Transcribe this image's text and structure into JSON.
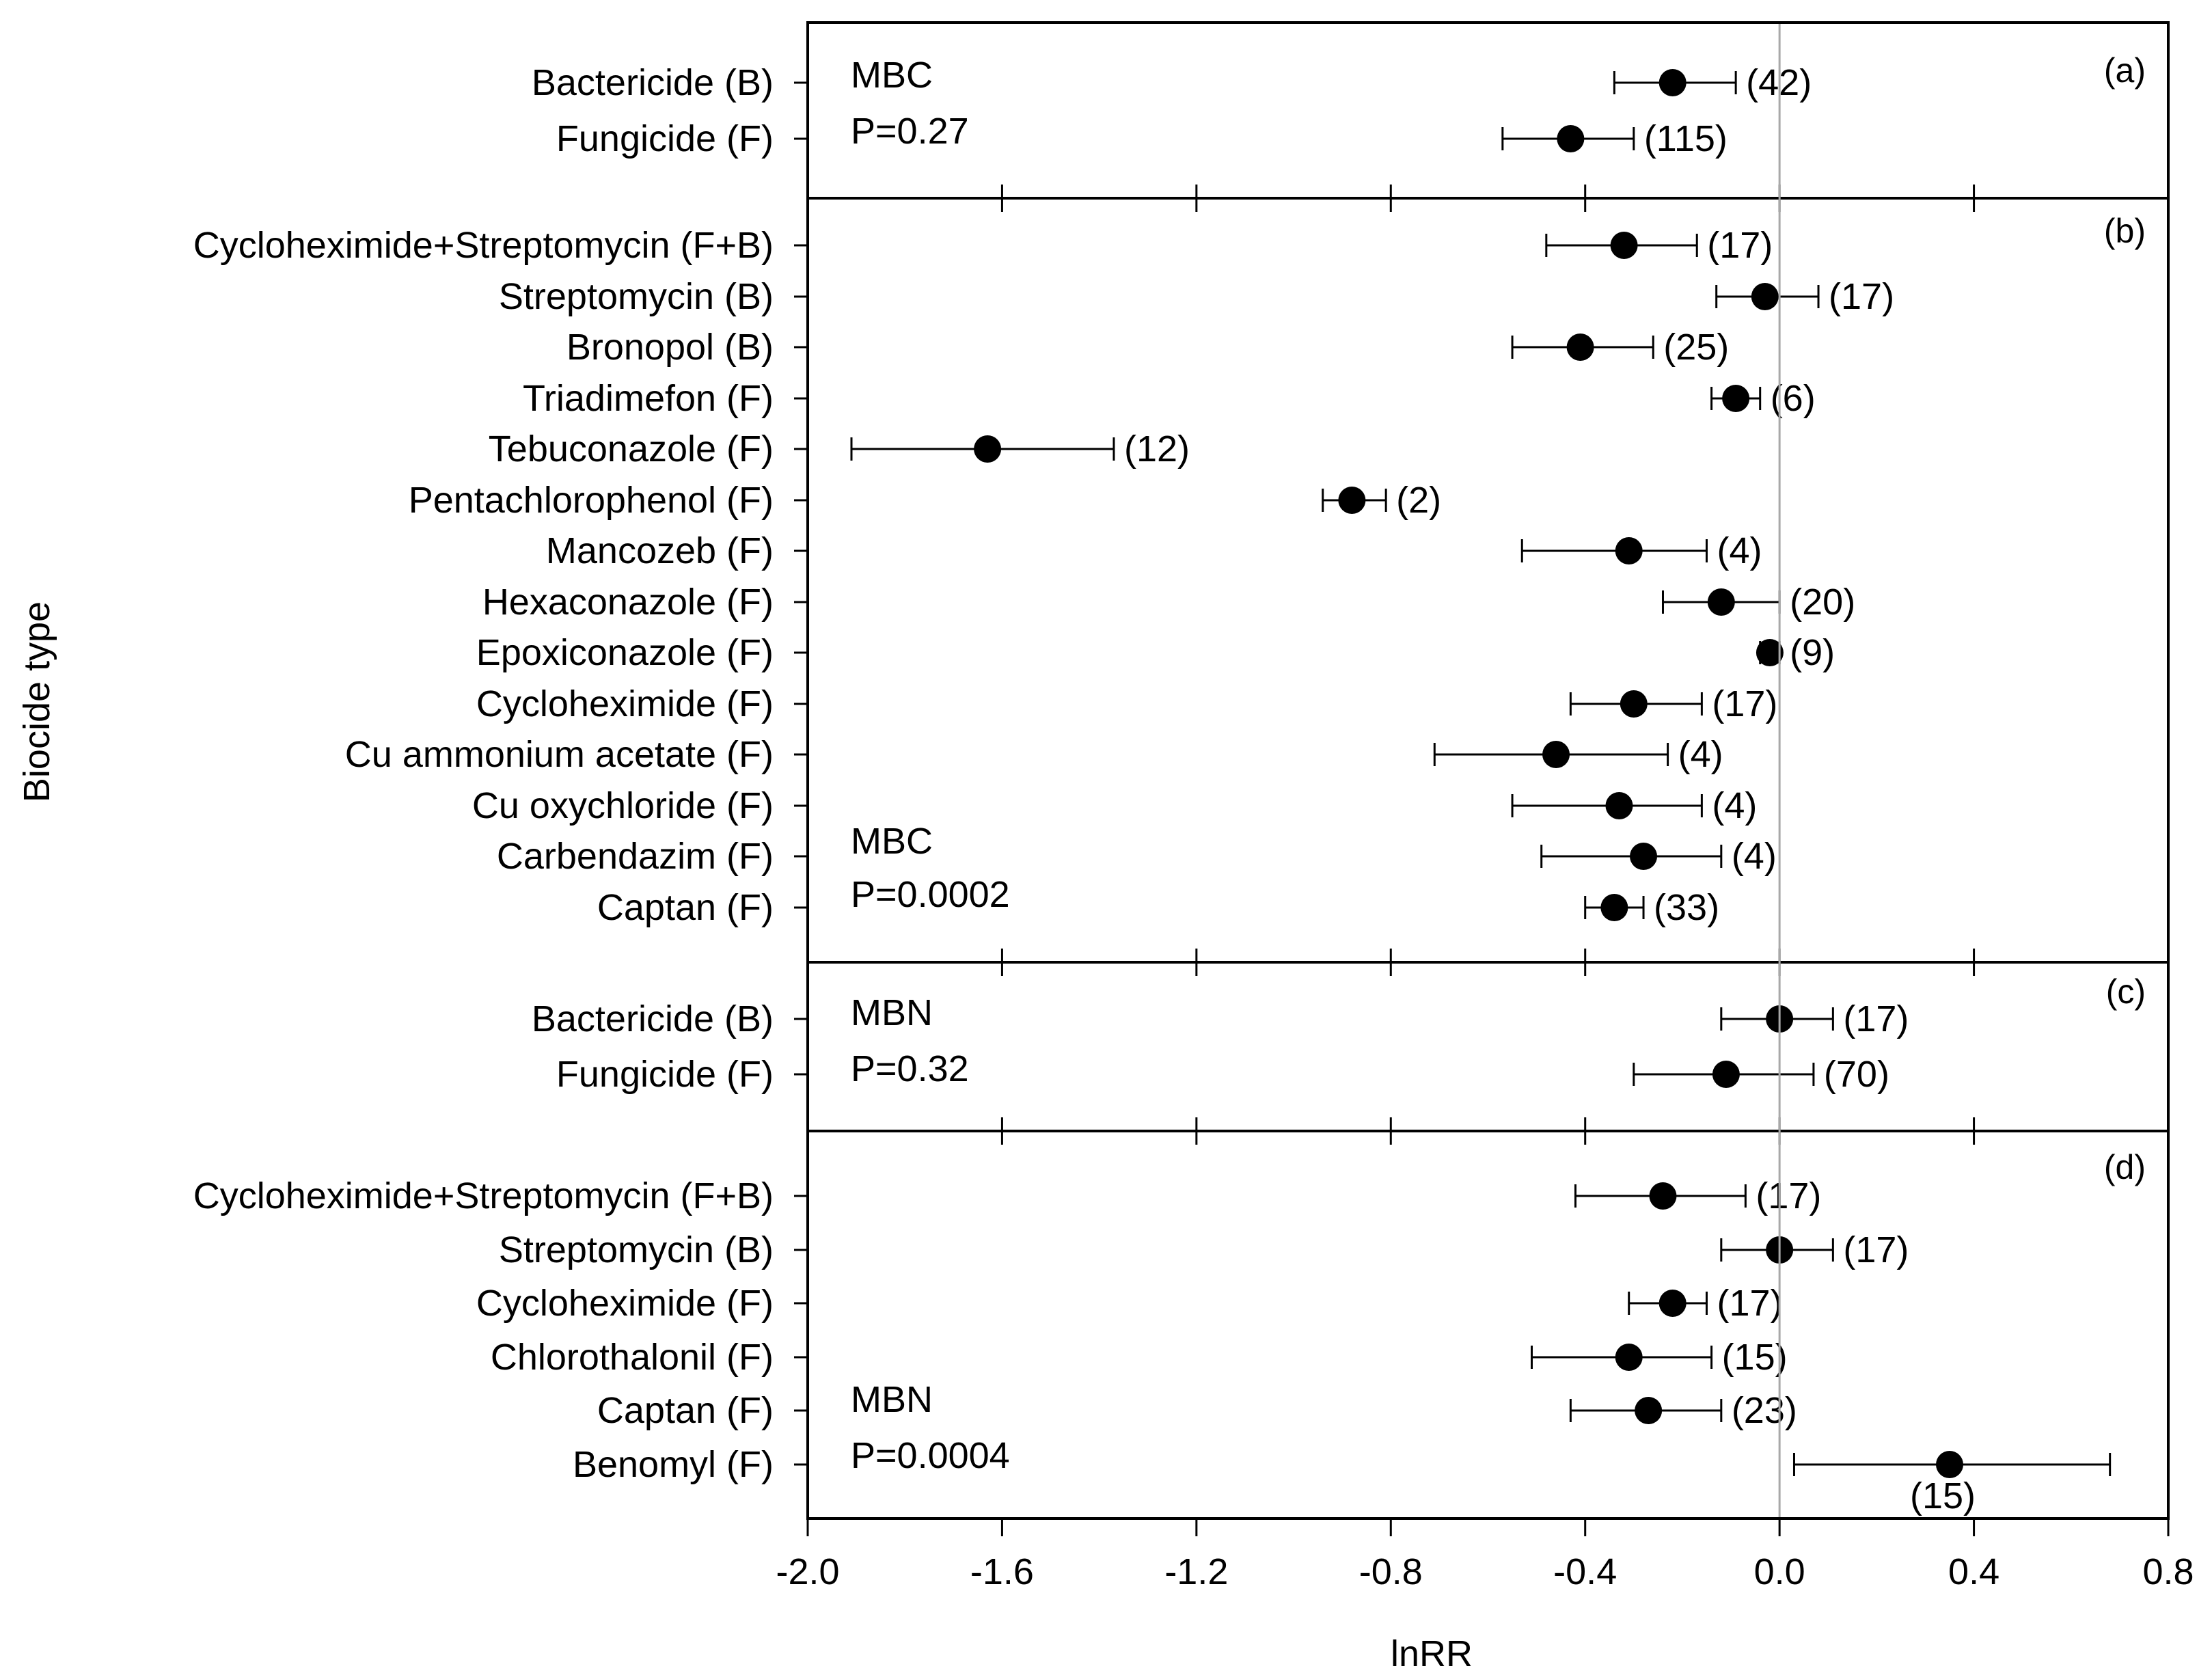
{
  "chart_data": {
    "type": "forest",
    "xlabel": "lnRR",
    "ylabel": "Biocide type",
    "xlim": [
      -2.0,
      0.8
    ],
    "xticks": [
      "-2.0",
      "-1.6",
      "-1.2",
      "-0.8",
      "-0.4",
      "0.0",
      "0.4",
      "0.8"
    ],
    "reference_line": 0.0,
    "panels": [
      {
        "label": "(a)",
        "metric": "MBC",
        "p_value": "P=0.27",
        "rows": [
          {
            "name": "Bactericide (B)",
            "mean": -0.22,
            "lo": -0.34,
            "hi": -0.09,
            "n": "(42)"
          },
          {
            "name": "Fungicide (F)",
            "mean": -0.43,
            "lo": -0.57,
            "hi": -0.3,
            "n": "(115)"
          }
        ]
      },
      {
        "label": "(b)",
        "metric": "MBC",
        "p_value": "P=0.0002",
        "rows": [
          {
            "name": "Cycloheximide+Streptomycin (F+B)",
            "mean": -0.32,
            "lo": -0.48,
            "hi": -0.17,
            "n": "(17)"
          },
          {
            "name": "Streptomycin (B)",
            "mean": -0.03,
            "lo": -0.13,
            "hi": 0.08,
            "n": "(17)"
          },
          {
            "name": "Bronopol (B)",
            "mean": -0.41,
            "lo": -0.55,
            "hi": -0.26,
            "n": "(25)"
          },
          {
            "name": "Triadimefon (F)",
            "mean": -0.09,
            "lo": -0.14,
            "hi": -0.04,
            "n": "(6)"
          },
          {
            "name": "Tebuconazole (F)",
            "mean": -1.63,
            "lo": -1.91,
            "hi": -1.37,
            "n": "(12)"
          },
          {
            "name": "Pentachlorophenol (F)",
            "mean": -0.88,
            "lo": -0.94,
            "hi": -0.81,
            "n": "(2)"
          },
          {
            "name": "Mancozeb (F)",
            "mean": -0.31,
            "lo": -0.53,
            "hi": -0.15,
            "n": "(4)"
          },
          {
            "name": "Hexaconazole (F)",
            "mean": -0.12,
            "lo": -0.24,
            "hi": 0.0,
            "n": "(20)"
          },
          {
            "name": "Epoxiconazole (F)",
            "mean": -0.02,
            "lo": -0.04,
            "hi": 0.0,
            "n": "(9)"
          },
          {
            "name": "Cycloheximide (F)",
            "mean": -0.3,
            "lo": -0.43,
            "hi": -0.16,
            "n": "(17)"
          },
          {
            "name": "Cu ammonium acetate (F)",
            "mean": -0.46,
            "lo": -0.71,
            "hi": -0.23,
            "n": "(4)"
          },
          {
            "name": "Cu oxychloride (F)",
            "mean": -0.33,
            "lo": -0.55,
            "hi": -0.16,
            "n": "(4)"
          },
          {
            "name": "Carbendazim (F)",
            "mean": -0.28,
            "lo": -0.49,
            "hi": -0.12,
            "n": "(4)"
          },
          {
            "name": "Captan (F)",
            "mean": -0.34,
            "lo": -0.4,
            "hi": -0.28,
            "n": "(33)"
          }
        ]
      },
      {
        "label": "(c)",
        "metric": "MBN",
        "p_value": "P=0.32",
        "rows": [
          {
            "name": "Bactericide (B)",
            "mean": 0.0,
            "lo": -0.12,
            "hi": 0.11,
            "n": "(17)"
          },
          {
            "name": "Fungicide (F)",
            "mean": -0.11,
            "lo": -0.3,
            "hi": 0.07,
            "n": "(70)"
          }
        ]
      },
      {
        "label": "(d)",
        "metric": "MBN",
        "p_value": "P=0.0004",
        "rows": [
          {
            "name": "Cycloheximide+Streptomycin (F+B)",
            "mean": -0.24,
            "lo": -0.42,
            "hi": -0.07,
            "n": "(17)"
          },
          {
            "name": "Streptomycin (B)",
            "mean": 0.0,
            "lo": -0.12,
            "hi": 0.11,
            "n": "(17)"
          },
          {
            "name": "Cycloheximide (F)",
            "mean": -0.22,
            "lo": -0.31,
            "hi": -0.15,
            "n": "(17)"
          },
          {
            "name": "Chlorothalonil (F)",
            "mean": -0.31,
            "lo": -0.51,
            "hi": -0.14,
            "n": "(15)"
          },
          {
            "name": "Captan (F)",
            "mean": -0.27,
            "lo": -0.43,
            "hi": -0.12,
            "n": "(23)"
          },
          {
            "name": "Benomyl (F)",
            "mean": 0.35,
            "lo": 0.03,
            "hi": 0.68,
            "n": "(15)"
          }
        ]
      }
    ]
  }
}
